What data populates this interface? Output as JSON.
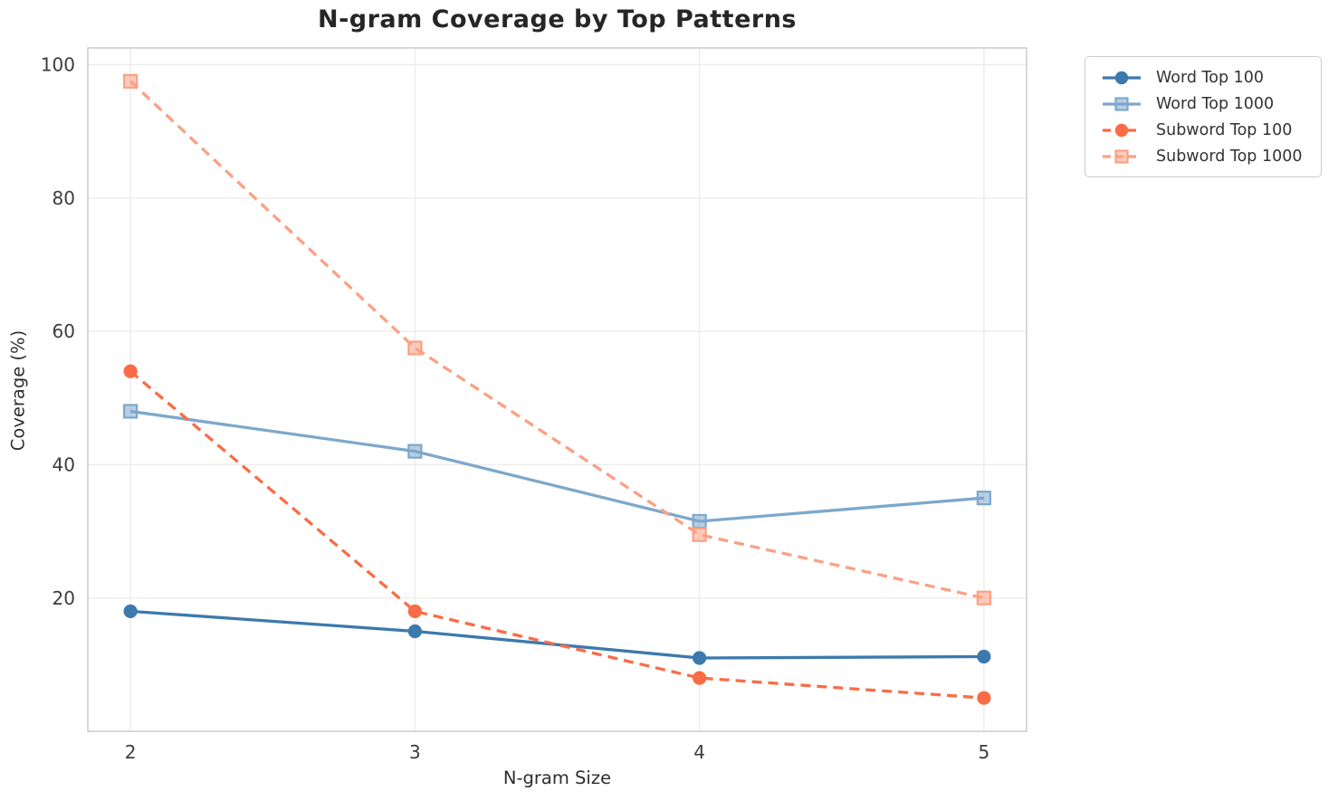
{
  "chart_data": {
    "type": "line",
    "title": "N-gram Coverage by Top Patterns",
    "xlabel": "N-gram Size",
    "ylabel": "Coverage (%)",
    "x": [
      2,
      3,
      4,
      5
    ],
    "xticks": [
      "2",
      "3",
      "4",
      "5"
    ],
    "yticks": [
      20,
      40,
      60,
      80,
      100
    ],
    "xlim": [
      1.85,
      5.15
    ],
    "ylim": [
      0,
      102.5
    ],
    "grid": true,
    "legend_position": "outside-upper-right",
    "series": [
      {
        "name": "Word Top 100",
        "values": [
          18,
          15,
          11,
          11.2
        ],
        "color": "#3c79ad",
        "style": "solid",
        "marker": "circle"
      },
      {
        "name": "Word Top 1000",
        "values": [
          48,
          42,
          31.5,
          35
        ],
        "color": "#7da8cc",
        "style": "solid",
        "marker": "square"
      },
      {
        "name": "Subword Top 100",
        "values": [
          54,
          18,
          8,
          5
        ],
        "color": "#f96c46",
        "style": "dashed",
        "marker": "circle"
      },
      {
        "name": "Subword Top 1000",
        "values": [
          97.5,
          57.5,
          29.5,
          20
        ],
        "color": "#fba184",
        "style": "dashed",
        "marker": "square"
      }
    ],
    "colors": {
      "grid": "#ececec",
      "spine": "#cccccc",
      "title_text": "#262626",
      "tick_text": "#3d3d3d"
    }
  }
}
